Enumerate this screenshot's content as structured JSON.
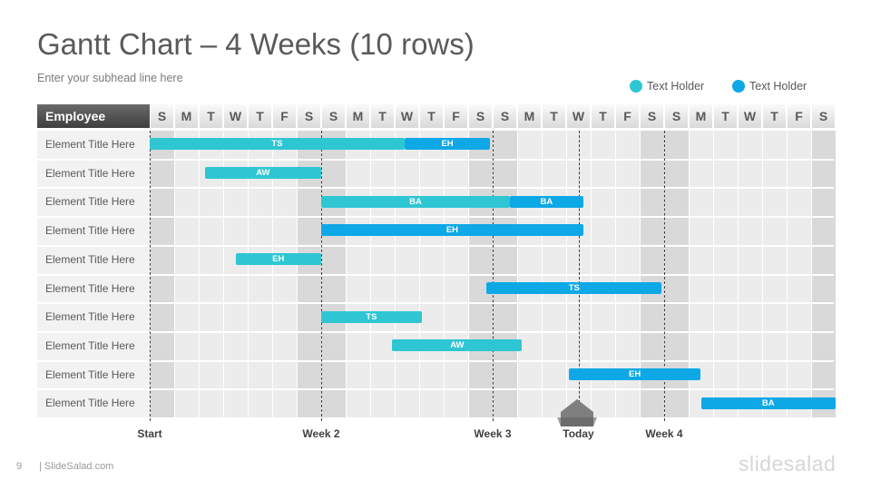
{
  "slide": {
    "title": "Gantt Chart – 4 Weeks (10 rows)",
    "subhead": "Enter your subhead  line here",
    "page_number": "9",
    "footer": "| SlideSalad.com",
    "brand": "slidesalad"
  },
  "legend": [
    {
      "label": "Text Holder",
      "color": "#2ec6d3"
    },
    {
      "label": "Text Holder",
      "color": "#0ea8e6"
    }
  ],
  "gantt": {
    "employee_header": "Employee",
    "days": [
      "S",
      "M",
      "T",
      "W",
      "T",
      "F",
      "S",
      "S",
      "M",
      "T",
      "W",
      "T",
      "F",
      "S",
      "S",
      "M",
      "T",
      "W",
      "T",
      "F",
      "S",
      "S",
      "M",
      "T",
      "W",
      "T",
      "F",
      "S"
    ],
    "rows": [
      "Element Title Here",
      "Element Title Here",
      "Element Title Here",
      "Element Title Here",
      "Element Title Here",
      "Element Title Here",
      "Element Title Here",
      "Element Title Here",
      "Element Title Here",
      "Element Title Here"
    ],
    "tasks": [
      {
        "row": 0,
        "start": 0,
        "end": 10.4,
        "label": "TS",
        "color": "teal"
      },
      {
        "row": 0,
        "start": 10.4,
        "end": 13.9,
        "label": "EH",
        "color": "blue"
      },
      {
        "row": 1,
        "start": 2.25,
        "end": 7.0,
        "label": "AW",
        "color": "teal"
      },
      {
        "row": 2,
        "start": 7.0,
        "end": 14.7,
        "label": "BA",
        "color": "teal"
      },
      {
        "row": 2,
        "start": 14.7,
        "end": 17.7,
        "label": "BA",
        "color": "blue"
      },
      {
        "row": 3,
        "start": 7.0,
        "end": 17.7,
        "label": "EH",
        "color": "blue"
      },
      {
        "row": 4,
        "start": 3.5,
        "end": 7.0,
        "label": "EH",
        "color": "teal"
      },
      {
        "row": 5,
        "start": 13.75,
        "end": 20.9,
        "label": "TS",
        "color": "blue"
      },
      {
        "row": 6,
        "start": 7.0,
        "end": 11.1,
        "label": "TS",
        "color": "teal"
      },
      {
        "row": 7,
        "start": 9.9,
        "end": 15.2,
        "label": "AW",
        "color": "teal"
      },
      {
        "row": 8,
        "start": 17.1,
        "end": 22.5,
        "label": "EH",
        "color": "blue"
      },
      {
        "row": 9,
        "start": 22.5,
        "end": 28.0,
        "label": "BA",
        "color": "blue"
      }
    ],
    "markers": [
      {
        "label": "Start",
        "day": 0
      },
      {
        "label": "Week 2",
        "day": 7
      },
      {
        "label": "Week 3",
        "day": 14
      },
      {
        "label": "Today",
        "day": 17.5
      },
      {
        "label": "Week 4",
        "day": 21
      }
    ],
    "colors": {
      "teal": "#2ec6d3",
      "blue": "#0ea8e6",
      "today_marker": "#7f7f7f"
    }
  }
}
